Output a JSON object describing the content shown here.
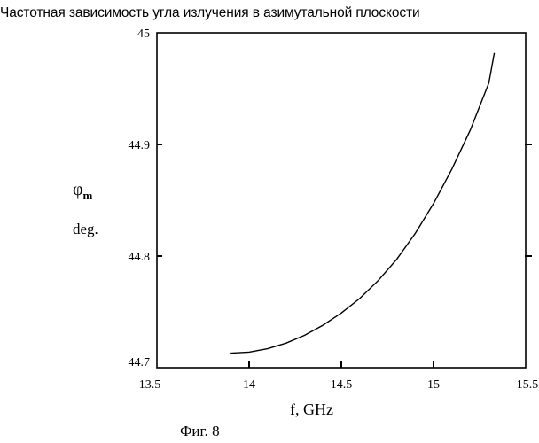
{
  "header": {
    "title": "Частотная зависимость угла излучения в азимутальной плоскости"
  },
  "caption": "Фиг. 8",
  "chart_data": {
    "type": "line",
    "title": "Частотная зависимость угла излучения в азимутальной плоскости",
    "xlabel": "f, GHz",
    "ylabel_symbol": "φ",
    "ylabel_subscript": "m",
    "ylabel_unit": "deg.",
    "xlim": [
      13.5,
      15.5
    ],
    "ylim": [
      44.7,
      45
    ],
    "x_ticks": [
      "13.5",
      "14",
      "14.5",
      "15",
      "15.5"
    ],
    "y_ticks": [
      "44.7",
      "44.8",
      "44.9",
      "45"
    ],
    "grid": false,
    "series": [
      {
        "x": [
          13.9,
          14.0,
          14.1,
          14.2,
          14.3,
          14.4,
          14.5,
          14.6,
          14.7,
          14.8,
          14.9,
          15.0,
          15.1,
          15.2,
          15.3,
          15.33
        ],
        "y": [
          44.713,
          44.714,
          44.717,
          44.722,
          44.729,
          44.738,
          44.749,
          44.762,
          44.778,
          44.797,
          44.82,
          44.847,
          44.878,
          44.913,
          44.955,
          44.982
        ]
      }
    ]
  }
}
